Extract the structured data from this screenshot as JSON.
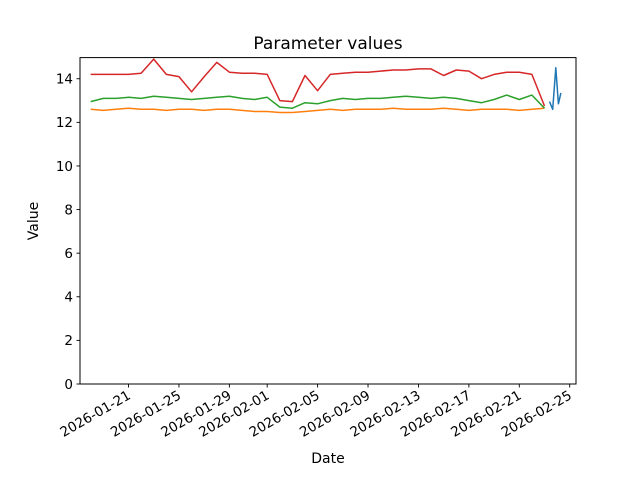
{
  "figure": {
    "background": "#ffffff"
  },
  "chart_data": {
    "type": "line",
    "title": "Parameter values",
    "xlabel": "Date",
    "ylabel": "Value",
    "grid": false,
    "legend": "none",
    "ylim": [
      0,
      14.97
    ],
    "xlim_day_offsets": [
      -0.85,
      38.5
    ],
    "start_date": "2026-01-18",
    "y_ticks": [
      0,
      2,
      4,
      6,
      8,
      10,
      12,
      14
    ],
    "x_ticks": [
      {
        "label": "2026-01-21",
        "day_offset": 3
      },
      {
        "label": "2026-01-25",
        "day_offset": 7
      },
      {
        "label": "2026-01-29",
        "day_offset": 11
      },
      {
        "label": "2026-02-01",
        "day_offset": 14
      },
      {
        "label": "2026-02-05",
        "day_offset": 18
      },
      {
        "label": "2026-02-09",
        "day_offset": 22
      },
      {
        "label": "2026-02-13",
        "day_offset": 26
      },
      {
        "label": "2026-02-17",
        "day_offset": 30
      },
      {
        "label": "2026-02-21",
        "day_offset": 34
      },
      {
        "label": "2026-02-25",
        "day_offset": 38
      }
    ],
    "dates": [
      "2026-01-18",
      "2026-01-19",
      "2026-01-20",
      "2026-01-21",
      "2026-01-22",
      "2026-01-23",
      "2026-01-24",
      "2026-01-25",
      "2026-01-26",
      "2026-01-27",
      "2026-01-28",
      "2026-01-29",
      "2026-01-30",
      "2026-01-31",
      "2026-02-01",
      "2026-02-02",
      "2026-02-03",
      "2026-02-04",
      "2026-02-05",
      "2026-02-06",
      "2026-02-07",
      "2026-02-08",
      "2026-02-09",
      "2026-02-10",
      "2026-02-11",
      "2026-02-12",
      "2026-02-13",
      "2026-02-14",
      "2026-02-15",
      "2026-02-16",
      "2026-02-17",
      "2026-02-18",
      "2026-02-19",
      "2026-02-20",
      "2026-02-21",
      "2026-02-22",
      "2026-02-23"
    ],
    "series": [
      {
        "name": "series-orange",
        "color": "#ff7f0e",
        "x_mode": "daily",
        "values": [
          12.6,
          12.55,
          12.6,
          12.65,
          12.6,
          12.6,
          12.55,
          12.6,
          12.6,
          12.55,
          12.6,
          12.6,
          12.55,
          12.5,
          12.5,
          12.45,
          12.45,
          12.5,
          12.55,
          12.6,
          12.55,
          12.6,
          12.6,
          12.6,
          12.65,
          12.6,
          12.6,
          12.6,
          12.65,
          12.6,
          12.55,
          12.6,
          12.6,
          12.6,
          12.55,
          12.6,
          12.65
        ]
      },
      {
        "name": "series-green",
        "color": "#2ca02c",
        "x_mode": "daily",
        "values": [
          12.95,
          13.1,
          13.1,
          13.15,
          13.1,
          13.2,
          13.15,
          13.1,
          13.05,
          13.1,
          13.15,
          13.2,
          13.1,
          13.05,
          13.15,
          12.7,
          12.65,
          12.9,
          12.85,
          13.0,
          13.1,
          13.05,
          13.1,
          13.1,
          13.15,
          13.2,
          13.15,
          13.1,
          13.15,
          13.1,
          13.0,
          12.9,
          13.05,
          13.25,
          13.05,
          13.25,
          12.65
        ]
      },
      {
        "name": "series-red",
        "color": "#d62728",
        "x_mode": "daily",
        "values": [
          14.2,
          14.2,
          14.2,
          14.2,
          14.25,
          14.9,
          14.2,
          14.1,
          13.4,
          14.1,
          14.75,
          14.3,
          14.25,
          14.25,
          14.2,
          13.0,
          12.95,
          14.15,
          13.45,
          14.2,
          14.25,
          14.3,
          14.3,
          14.35,
          14.4,
          14.4,
          14.45,
          14.45,
          14.15,
          14.4,
          14.35,
          14.0,
          14.2,
          14.3,
          14.3,
          14.2,
          12.75
        ]
      },
      {
        "name": "series-blue",
        "color": "#1f77b4",
        "x_mode": "offsets",
        "points": [
          [
            36.4,
            12.95
          ],
          [
            36.65,
            12.6
          ],
          [
            36.9,
            14.5
          ],
          [
            37.1,
            12.85
          ],
          [
            37.3,
            13.35
          ]
        ]
      }
    ]
  }
}
